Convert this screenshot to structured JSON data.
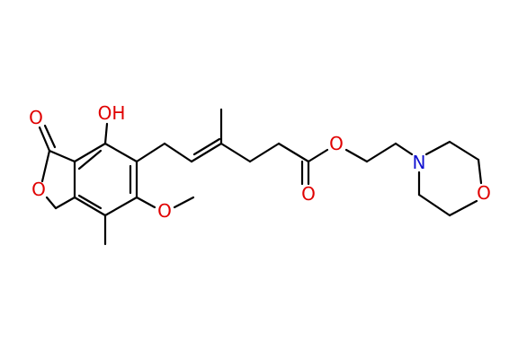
{
  "atoms": [
    {
      "label": "OH"
    },
    {
      "label": "O"
    },
    {
      "label": "O"
    },
    {
      "label": "O"
    },
    {
      "label": "O"
    },
    {
      "label": "O"
    },
    {
      "label": "N"
    },
    {
      "label": "O"
    }
  ]
}
